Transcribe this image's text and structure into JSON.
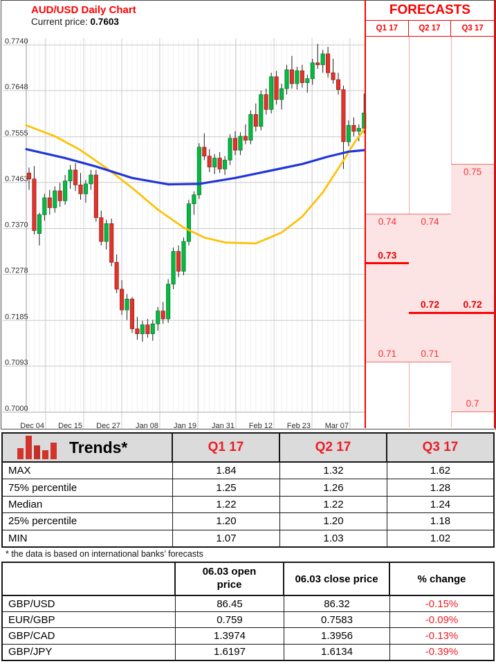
{
  "chart_data": {
    "type": "candlestick",
    "title": "AUD/USD Daily Chart",
    "current_price_label": "Current price:",
    "current_price": "0.7603",
    "ylim": [
      0.7,
      0.774
    ],
    "y_ticks": [
      "0.7740",
      "0.7648",
      "0.7555",
      "0.7463",
      "0.7370",
      "0.7278",
      "0.7185",
      "0.7093",
      "0.7000"
    ],
    "x_ticks": [
      "Dec 04",
      "Dec 15",
      "Dec 27",
      "Jan 08",
      "Jan 19",
      "Jan 31",
      "Feb 12",
      "Feb 23",
      "Mar 07"
    ],
    "candles_ohlc": [
      [
        0.7482,
        0.7493,
        0.7448,
        0.747
      ],
      [
        0.747,
        0.7496,
        0.7358,
        0.7366
      ],
      [
        0.736,
        0.7402,
        0.7336,
        0.7398
      ],
      [
        0.7398,
        0.744,
        0.7386,
        0.7432
      ],
      [
        0.7432,
        0.7448,
        0.7398,
        0.7412
      ],
      [
        0.7412,
        0.7455,
        0.7402,
        0.7446
      ],
      [
        0.7446,
        0.7462,
        0.7414,
        0.7426
      ],
      [
        0.7426,
        0.7478,
        0.7418,
        0.7466
      ],
      [
        0.7466,
        0.7498,
        0.745,
        0.7488
      ],
      [
        0.7488,
        0.7502,
        0.7446,
        0.7458
      ],
      [
        0.7458,
        0.7482,
        0.7428,
        0.744
      ],
      [
        0.744,
        0.7468,
        0.7422,
        0.746
      ],
      [
        0.746,
        0.7488,
        0.7448,
        0.7478
      ],
      [
        0.7478,
        0.7488,
        0.7384,
        0.7392
      ],
      [
        0.7392,
        0.7406,
        0.7336,
        0.7344
      ],
      [
        0.7344,
        0.7388,
        0.7328,
        0.738
      ],
      [
        0.738,
        0.739,
        0.7294,
        0.7302
      ],
      [
        0.7302,
        0.7318,
        0.724,
        0.7248
      ],
      [
        0.7248,
        0.7266,
        0.7196,
        0.7206
      ],
      [
        0.7206,
        0.7238,
        0.7186,
        0.7228
      ],
      [
        0.7228,
        0.7232,
        0.716,
        0.7168
      ],
      [
        0.7168,
        0.7192,
        0.7146,
        0.7158
      ],
      [
        0.7158,
        0.7184,
        0.7142,
        0.7176
      ],
      [
        0.7176,
        0.7188,
        0.715,
        0.7158
      ],
      [
        0.7158,
        0.7186,
        0.7144,
        0.7178
      ],
      [
        0.7178,
        0.7212,
        0.7164,
        0.7204
      ],
      [
        0.7204,
        0.7222,
        0.7178,
        0.7188
      ],
      [
        0.7188,
        0.7268,
        0.718,
        0.7258
      ],
      [
        0.7258,
        0.7332,
        0.7248,
        0.7324
      ],
      [
        0.7324,
        0.7336,
        0.7272,
        0.7284
      ],
      [
        0.7284,
        0.7352,
        0.7276,
        0.7344
      ],
      [
        0.7344,
        0.7428,
        0.7336,
        0.742
      ],
      [
        0.742,
        0.7445,
        0.7398,
        0.7438
      ],
      [
        0.7438,
        0.7542,
        0.743,
        0.7534
      ],
      [
        0.7534,
        0.7562,
        0.7508,
        0.7516
      ],
      [
        0.7516,
        0.753,
        0.7484,
        0.7494
      ],
      [
        0.7494,
        0.752,
        0.748,
        0.7512
      ],
      [
        0.7512,
        0.7524,
        0.7482,
        0.749
      ],
      [
        0.749,
        0.7516,
        0.7478,
        0.7508
      ],
      [
        0.7508,
        0.756,
        0.7498,
        0.7552
      ],
      [
        0.7552,
        0.7566,
        0.7518,
        0.7528
      ],
      [
        0.7528,
        0.7564,
        0.7518,
        0.7556
      ],
      [
        0.7556,
        0.758,
        0.754,
        0.7548
      ],
      [
        0.7548,
        0.7608,
        0.754,
        0.76
      ],
      [
        0.76,
        0.7622,
        0.7566,
        0.7576
      ],
      [
        0.7576,
        0.7648,
        0.7568,
        0.764
      ],
      [
        0.764,
        0.7652,
        0.76,
        0.761
      ],
      [
        0.761,
        0.7684,
        0.7602,
        0.7676
      ],
      [
        0.7676,
        0.7688,
        0.762,
        0.763
      ],
      [
        0.763,
        0.7662,
        0.761,
        0.7652
      ],
      [
        0.7652,
        0.77,
        0.764,
        0.769
      ],
      [
        0.769,
        0.7718,
        0.7652,
        0.7662
      ],
      [
        0.7662,
        0.7696,
        0.765,
        0.7688
      ],
      [
        0.7688,
        0.77,
        0.7654,
        0.7664
      ],
      [
        0.7664,
        0.768,
        0.7644,
        0.7672
      ],
      [
        0.7672,
        0.7712,
        0.766,
        0.7704
      ],
      [
        0.7704,
        0.7742,
        0.7692,
        0.77
      ],
      [
        0.77,
        0.773,
        0.7684,
        0.7722
      ],
      [
        0.7722,
        0.7736,
        0.7674,
        0.7684
      ],
      [
        0.7684,
        0.7712,
        0.7662,
        0.767
      ],
      [
        0.767,
        0.7684,
        0.764,
        0.765
      ],
      [
        0.765,
        0.7658,
        0.749,
        0.7545
      ],
      [
        0.7545,
        0.7588,
        0.7536,
        0.7578
      ],
      [
        0.7578,
        0.7594,
        0.7556,
        0.7566
      ],
      [
        0.7566,
        0.758,
        0.7546,
        0.7572
      ],
      [
        0.7572,
        0.7642,
        0.7562,
        0.7603
      ]
    ],
    "series": [
      {
        "name": "ma-fast",
        "color": "#FFC000",
        "points": [
          [
            0,
            0.7578
          ],
          [
            5,
            0.7556
          ],
          [
            10,
            0.7528
          ],
          [
            15,
            0.7492
          ],
          [
            20,
            0.7452
          ],
          [
            25,
            0.7408
          ],
          [
            30,
            0.7372
          ],
          [
            34,
            0.7352
          ],
          [
            38,
            0.7342
          ],
          [
            44,
            0.734
          ],
          [
            49,
            0.7362
          ],
          [
            53,
            0.7394
          ],
          [
            57,
            0.7443
          ],
          [
            61,
            0.7507
          ],
          [
            63,
            0.7541
          ],
          [
            65,
            0.757
          ]
        ]
      },
      {
        "name": "ma-slow",
        "color": "#2036D9",
        "points": [
          [
            0,
            0.753
          ],
          [
            7,
            0.7512
          ],
          [
            13,
            0.7495
          ],
          [
            20,
            0.7472
          ],
          [
            27,
            0.7459
          ],
          [
            33,
            0.746
          ],
          [
            40,
            0.7472
          ],
          [
            47,
            0.7487
          ],
          [
            53,
            0.75
          ],
          [
            58,
            0.7515
          ],
          [
            62,
            0.7525
          ],
          [
            65,
            0.7528
          ]
        ]
      }
    ],
    "forecast_ranges": [
      {
        "quarter": "Q1 17",
        "high": "0.74",
        "median": "0.73",
        "low": "0.71"
      },
      {
        "quarter": "Q2 17",
        "high": "0.74",
        "median": "0.72",
        "low": "0.71"
      },
      {
        "quarter": "Q3 17",
        "high": "0.75",
        "median": "0.72",
        "low": "0.7"
      }
    ],
    "colors": {
      "candle_up": "#04BA41",
      "candle_down": "#E2332B",
      "forecast_red": "#FB0000",
      "forecast_fill": "#FCE4E4",
      "grid": "#C9C9C9"
    }
  },
  "forecast_panel": {
    "title": "FORECASTS"
  },
  "trends": {
    "title": "Trends*",
    "icon": "bar-chart-icon",
    "columns": [
      "Q1 17",
      "Q2 17",
      "Q3 17"
    ],
    "rows": [
      {
        "label": "MAX",
        "values": [
          "1.84",
          "1.32",
          "1.62"
        ]
      },
      {
        "label": "75% percentile",
        "values": [
          "1.25",
          "1.26",
          "1.28"
        ]
      },
      {
        "label": "Median",
        "values": [
          "1.22",
          "1.22",
          "1.24"
        ]
      },
      {
        "label": "25% percentile",
        "values": [
          "1.20",
          "1.20",
          "1.18"
        ]
      },
      {
        "label": "MIN",
        "values": [
          "1.07",
          "1.03",
          "1.02"
        ]
      }
    ],
    "footnote": "* the data is based on international banks’ forecasts"
  },
  "price_table": {
    "columns": [
      "",
      "06.03 open price",
      "06.03 close price",
      "% change"
    ],
    "rows": [
      {
        "pair": "GBP/USD",
        "open": "86.45",
        "close": "86.32",
        "change": "-0.15%"
      },
      {
        "pair": "EUR/GBP",
        "open": "0.759",
        "close": "0.7583",
        "change": "-0.09%"
      },
      {
        "pair": "GBP/CAD",
        "open": "1.3974",
        "close": "1.3956",
        "change": "-0.13%"
      },
      {
        "pair": "GBP/JPY",
        "open": "1.6197",
        "close": "1.6134",
        "change": "-0.39%"
      }
    ]
  }
}
